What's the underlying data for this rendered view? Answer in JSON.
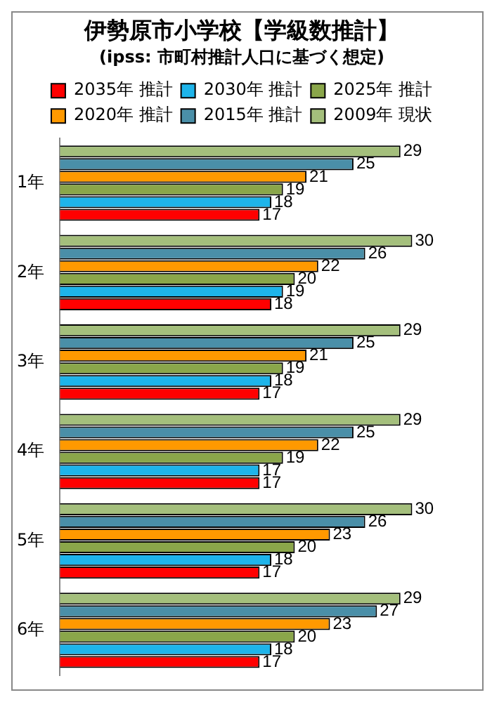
{
  "chart_data": {
    "type": "bar",
    "orientation": "horizontal",
    "title": "伊勢原市小学校【学級数推計】",
    "subtitle": "(ipss: 市町村推計人口に基づく想定)",
    "categories": [
      "1年",
      "2年",
      "3年",
      "4年",
      "5年",
      "6年"
    ],
    "series": [
      {
        "name": "2035年 推計",
        "color": "#ff0000",
        "values": [
          17,
          18,
          17,
          17,
          17,
          17
        ]
      },
      {
        "name": "2030年 推計",
        "color": "#1eb4ea",
        "values": [
          18,
          19,
          18,
          17,
          18,
          18
        ]
      },
      {
        "name": "2025年 推計",
        "color": "#8aa64a",
        "values": [
          19,
          20,
          19,
          19,
          20,
          20
        ]
      },
      {
        "name": "2020年 推計",
        "color": "#ff9900",
        "values": [
          21,
          22,
          21,
          22,
          23,
          23
        ]
      },
      {
        "name": "2015年 推計",
        "color": "#4a8fa8",
        "values": [
          25,
          26,
          25,
          25,
          26,
          27
        ]
      },
      {
        "name": "2009年 現状",
        "color": "#a4bf7c",
        "values": [
          29,
          30,
          29,
          29,
          30,
          29
        ]
      }
    ],
    "data_labels": true,
    "legend": "top",
    "grid": false
  }
}
